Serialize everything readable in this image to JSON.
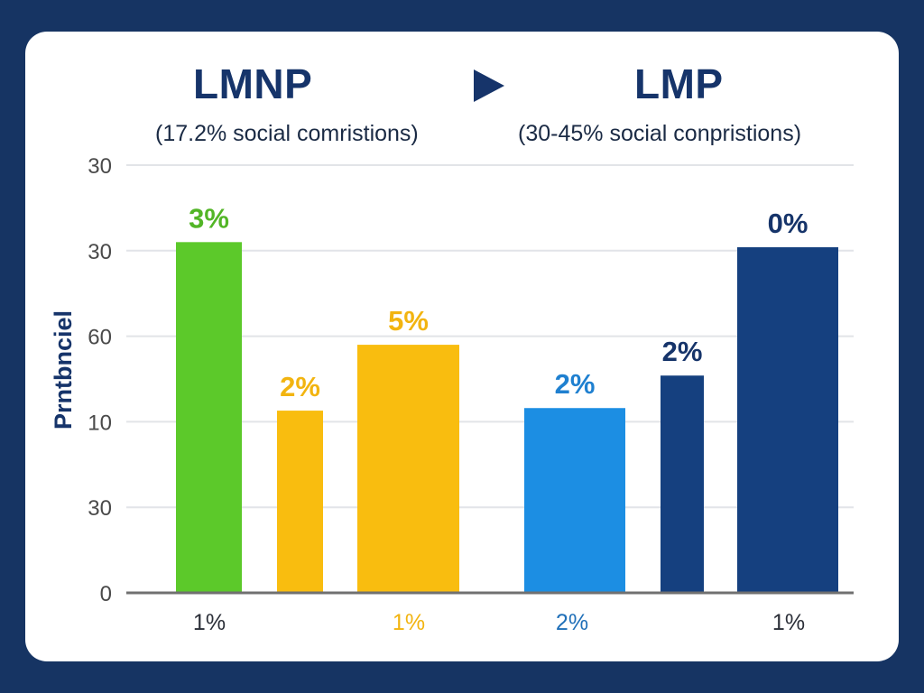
{
  "header": {
    "left_title": "LMNP",
    "left_subtitle": "(17.2% social comristions)",
    "right_title": "LMP",
    "right_subtitle": "(30-45% social conpristions)",
    "arrow_icon": "play-arrow-icon"
  },
  "colors": {
    "background": "#163463",
    "card": "#ffffff",
    "title": "#16346a",
    "green": "#5cc92a",
    "yellow": "#f9bd0f",
    "light_blue": "#1c8ee3",
    "navy": "#15407f",
    "gridline": "#e2e4e8",
    "baseline": "#707070"
  },
  "chart_data": {
    "type": "bar",
    "title": "LMNP ▶ LMP",
    "ylabel": "Prntbnciel",
    "xlabel": "",
    "y_tick_labels_bottom_to_top": [
      "0",
      "30",
      "10",
      "60",
      "30",
      "30"
    ],
    "y_value_units": "tick positions (0 = baseline, 5 = top gridline); tick labels are non-monotonic",
    "ylim": [
      0,
      5
    ],
    "grid": true,
    "legend": "none",
    "bars": [
      {
        "name": "bar-1",
        "value": 4.1,
        "label": "3%",
        "color": "#5cc92a",
        "label_color": "#52b526"
      },
      {
        "name": "bar-2",
        "value": 2.13,
        "label": "2%",
        "color": "#f9bd0f",
        "label_color": "#f2b410"
      },
      {
        "name": "bar-3",
        "value": 2.9,
        "label": "5%",
        "color": "#f9bd0f",
        "label_color": "#f2b410"
      },
      {
        "name": "bar-4",
        "value": 2.16,
        "label": "2%",
        "color": "#1c8ee3",
        "label_color": "#1f80d0"
      },
      {
        "name": "bar-5",
        "value": 2.54,
        "label": "2%",
        "color": "#15407f",
        "label_color": "#16346a"
      },
      {
        "name": "bar-6",
        "value": 4.04,
        "label": "0%",
        "color": "#15407f",
        "label_color": "#16346a"
      }
    ],
    "x_labels": [
      {
        "text": "1%",
        "color": "#2b2f38"
      },
      {
        "text": "1%",
        "color": "#f2b410"
      },
      {
        "text": "2%",
        "color": "#1f6fb8"
      },
      {
        "text": "1%",
        "color": "#2b2f38"
      }
    ]
  }
}
